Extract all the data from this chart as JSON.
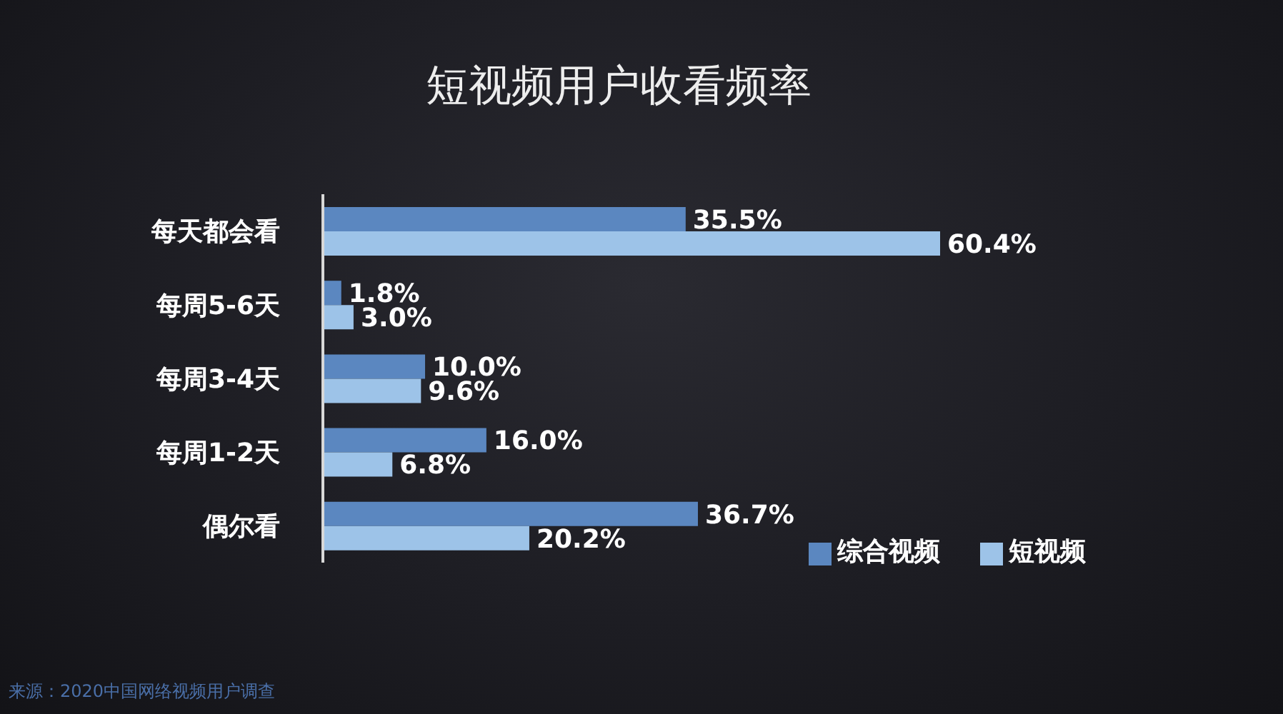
{
  "chart_data": {
    "type": "bar",
    "orientation": "horizontal",
    "title": "短视频用户收看频率",
    "categories": [
      "每天都会看",
      "每周5-6天",
      "每周3-4天",
      "每周1-2天",
      "偶尔看"
    ],
    "series": [
      {
        "name": "综合视频",
        "color": "#5b87c0",
        "values": [
          35.5,
          1.8,
          10.0,
          16.0,
          36.7
        ],
        "value_labels": [
          "35.5%",
          "1.8%",
          "10.0%",
          "16.0%",
          "36.7%"
        ]
      },
      {
        "name": "短视频",
        "color": "#9dc3e8",
        "values": [
          60.4,
          3.0,
          9.6,
          6.8,
          20.2
        ],
        "value_labels": [
          "60.4%",
          "3.0%",
          "9.6%",
          "6.8%",
          "20.2%"
        ]
      }
    ],
    "legend": "bottom right",
    "tick_labels": "y",
    "annotations": [
      "来源：2020中国网络视频用户调查"
    ]
  }
}
